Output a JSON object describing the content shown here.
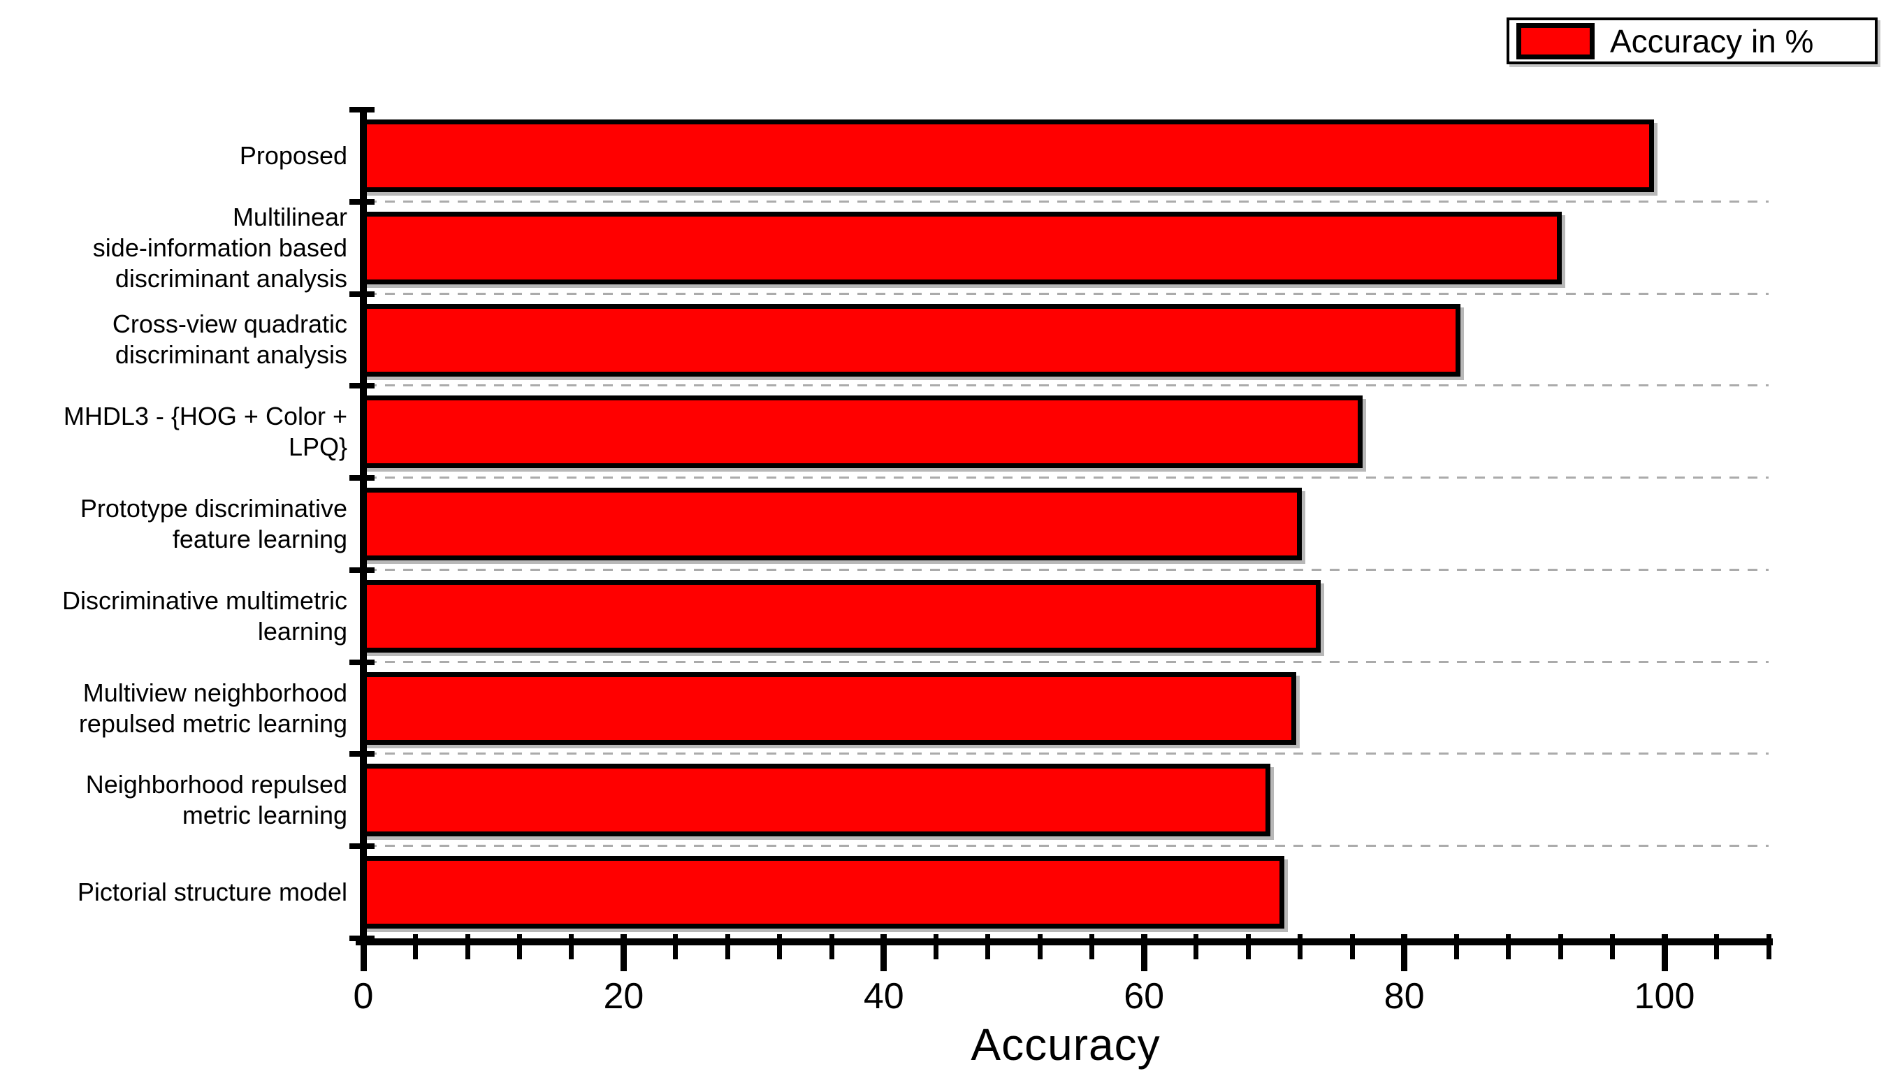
{
  "legend": {
    "label": "Accuracy in %",
    "swatch_color": "#ff0000",
    "position": "top-right"
  },
  "axis": {
    "x_title": "Accuracy",
    "x_tick_labels": [
      "0",
      "20",
      "40",
      "60",
      "80",
      "100"
    ]
  },
  "colors": {
    "bar_fill": "#ff0000",
    "bar_border": "#000000",
    "axis": "#000000",
    "gridline": "#ababab",
    "background": "#ffffff"
  },
  "chart_data": {
    "type": "bar",
    "orientation": "horizontal",
    "title": "",
    "xlabel": "Accuracy",
    "ylabel": "",
    "xlim": [
      0,
      108
    ],
    "x_major_ticks": [
      0,
      20,
      40,
      60,
      80,
      100
    ],
    "x_minor_tick_step": 4,
    "grid": "dashed horizontal lines between category slots",
    "legend_entries": [
      "Accuracy in %"
    ],
    "legend_position": "top-right",
    "bar_color": "#ff0000",
    "categories": [
      "Proposed",
      "Multilinear side-information based discriminant analysis",
      "Cross-view quadratic discriminant analysis",
      "MHDL3 - {HOG + Color + LPQ}",
      "Prototype discriminative feature learning",
      "Discriminative multimetric learning",
      "Multiview neighborhood repulsed metric learning",
      "Neighborhood repulsed metric learning",
      "Pictorial structure model"
    ],
    "category_display_lines": [
      "Proposed",
      "Multilinear\nside-information based\ndiscriminant analysis",
      "Cross-view quadratic\ndiscriminant analysis",
      "MHDL3 - {HOG + Color +\nLPQ}",
      "Prototype discriminative\nfeature learning",
      "Discriminative multimetric\nlearning",
      "Multiview neighborhood\nrepulsed metric learning",
      "Neighborhood repulsed\nmetric learning",
      "Pictorial structure model"
    ],
    "series": [
      {
        "name": "Accuracy in %",
        "values": [
          99.2,
          92.1,
          84.3,
          76.8,
          72.1,
          73.6,
          71.7,
          69.7,
          70.8
        ]
      }
    ]
  }
}
